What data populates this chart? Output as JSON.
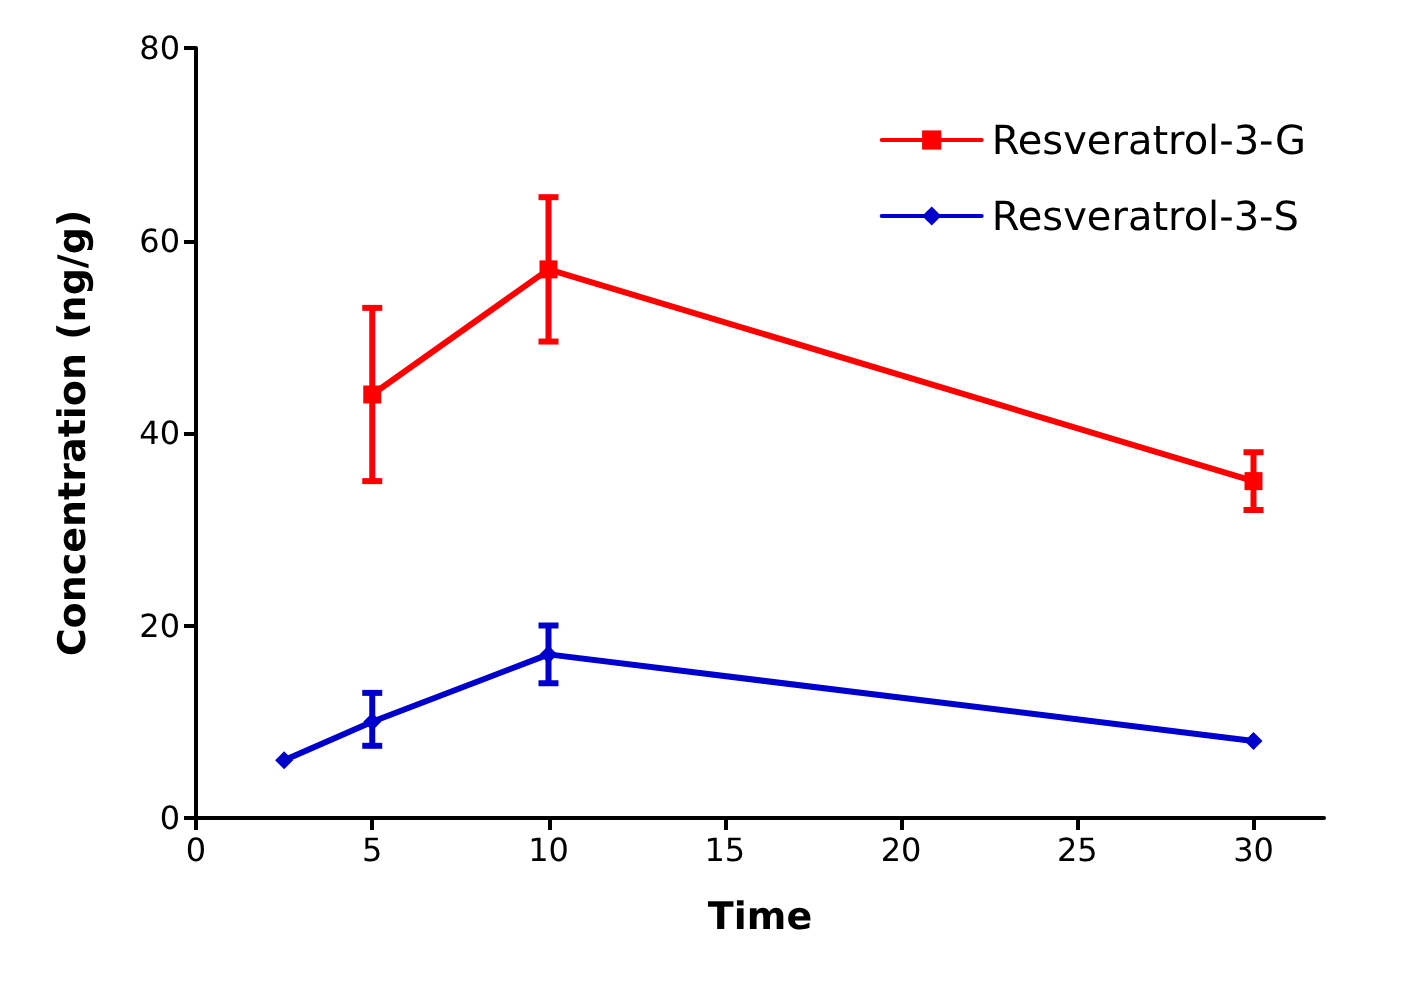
{
  "chart_data": {
    "type": "line",
    "xlabel": "Time",
    "ylabel": "Concentration (ng/g)",
    "xlim": [
      0,
      32
    ],
    "xticks": [
      0,
      5,
      10,
      15,
      20,
      25,
      30
    ],
    "ylim": [
      0,
      80
    ],
    "yticks": [
      0,
      20,
      40,
      60,
      80
    ],
    "grid": false,
    "legend": "top right",
    "line_style": "solid",
    "series": [
      {
        "name": "Resveratrol-3-G",
        "color": "#ff0000",
        "marker": "square",
        "x": [
          5,
          10,
          30
        ],
        "values": [
          44,
          57,
          35
        ],
        "errors": [
          [
            35,
            53
          ],
          [
            49.5,
            64.5
          ],
          [
            32,
            38
          ]
        ]
      },
      {
        "name": "Resveratrol-3-S",
        "color": "#0000cc",
        "marker": "diamond",
        "x": [
          2.5,
          5,
          10,
          30
        ],
        "values": [
          6,
          10,
          17,
          8
        ],
        "errors": [
          null,
          [
            7.5,
            13
          ],
          [
            14,
            20
          ],
          null
        ]
      }
    ]
  }
}
